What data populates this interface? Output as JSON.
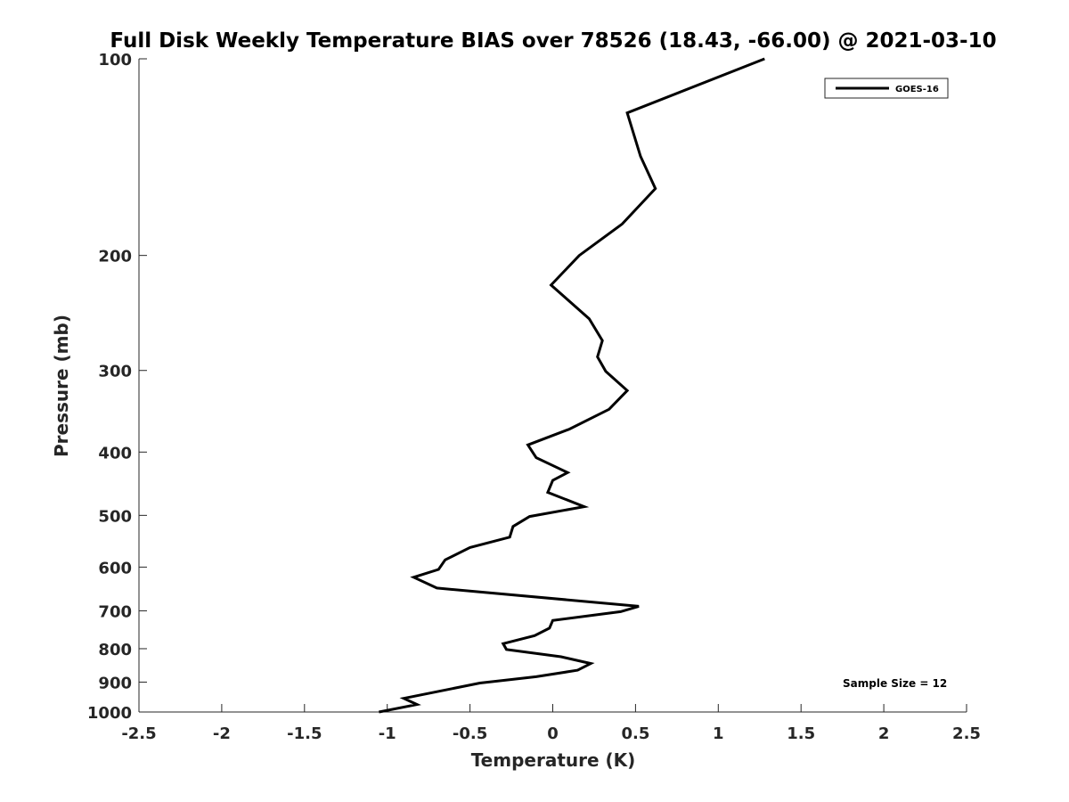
{
  "chart_data": {
    "type": "line",
    "title": "Full Disk Weekly Temperature BIAS over 78526 (18.43, -66.00) @ 2021-03-10",
    "xlabel": "Temperature (K)",
    "ylabel": "Pressure (mb)",
    "xlim": [
      -2.5,
      2.5
    ],
    "ylim": [
      100,
      1000
    ],
    "y_scale": "log",
    "y_reversed": true,
    "x_ticks": [
      "-2.5",
      "-2",
      "-1.5",
      "-1",
      "-0.5",
      "0",
      "0.5",
      "1",
      "1.5",
      "2",
      "2.5"
    ],
    "x_tick_values": [
      -2.5,
      -2,
      -1.5,
      -1,
      -0.5,
      0,
      0.5,
      1,
      1.5,
      2,
      2.5
    ],
    "y_ticks": [
      "100",
      "200",
      "300",
      "400",
      "500",
      "600",
      "700",
      "800",
      "900",
      "1000"
    ],
    "y_tick_values": [
      100,
      200,
      300,
      400,
      500,
      600,
      700,
      800,
      900,
      1000
    ],
    "grid": false,
    "legend_position": "top-right",
    "series": [
      {
        "name": "GOES-16",
        "color": "#000000",
        "points": [
          {
            "x": 1.28,
            "p": 100
          },
          {
            "x": 0.45,
            "p": 121
          },
          {
            "x": 0.53,
            "p": 141
          },
          {
            "x": 0.62,
            "p": 158
          },
          {
            "x": 0.42,
            "p": 179
          },
          {
            "x": 0.16,
            "p": 200
          },
          {
            "x": -0.01,
            "p": 222
          },
          {
            "x": 0.22,
            "p": 250
          },
          {
            "x": 0.3,
            "p": 270
          },
          {
            "x": 0.27,
            "p": 286
          },
          {
            "x": 0.32,
            "p": 301
          },
          {
            "x": 0.45,
            "p": 322
          },
          {
            "x": 0.34,
            "p": 344
          },
          {
            "x": 0.1,
            "p": 369
          },
          {
            "x": -0.15,
            "p": 390
          },
          {
            "x": -0.1,
            "p": 408
          },
          {
            "x": 0.09,
            "p": 430
          },
          {
            "x": 0.0,
            "p": 442
          },
          {
            "x": -0.03,
            "p": 461
          },
          {
            "x": 0.19,
            "p": 485
          },
          {
            "x": -0.14,
            "p": 502
          },
          {
            "x": -0.24,
            "p": 520
          },
          {
            "x": -0.26,
            "p": 540
          },
          {
            "x": -0.5,
            "p": 560
          },
          {
            "x": -0.65,
            "p": 585
          },
          {
            "x": -0.69,
            "p": 605
          },
          {
            "x": -0.84,
            "p": 622
          },
          {
            "x": -0.7,
            "p": 646
          },
          {
            "x": 0.52,
            "p": 689
          },
          {
            "x": 0.41,
            "p": 702
          },
          {
            "x": 0.0,
            "p": 724
          },
          {
            "x": -0.02,
            "p": 744
          },
          {
            "x": -0.11,
            "p": 764
          },
          {
            "x": -0.3,
            "p": 786
          },
          {
            "x": -0.28,
            "p": 802
          },
          {
            "x": 0.05,
            "p": 823
          },
          {
            "x": 0.23,
            "p": 843
          },
          {
            "x": 0.15,
            "p": 863
          },
          {
            "x": -0.1,
            "p": 883
          },
          {
            "x": -0.44,
            "p": 903
          },
          {
            "x": -0.9,
            "p": 953
          },
          {
            "x": -0.82,
            "p": 974
          },
          {
            "x": -1.05,
            "p": 1000
          }
        ]
      }
    ],
    "annotations": [
      {
        "text": "Sample Size = 12"
      }
    ]
  }
}
